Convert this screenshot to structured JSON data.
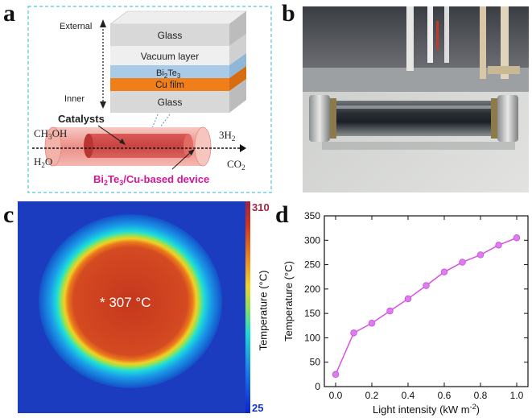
{
  "panels": {
    "a": {
      "letter": "a",
      "axis_top": "External",
      "axis_bottom": "Inner",
      "layers": {
        "glass_top": "Glass",
        "vacuum": "Vacuum layer",
        "bi2te3_base": "Bi",
        "bi2te3_sub1": "2",
        "bi2te3_mid": "Te",
        "bi2te3_sub2": "3",
        "cu": "Cu film",
        "glass_bottom": "Glass"
      },
      "catalysts": "Catalysts",
      "reactant_1": "CH",
      "reactant_1_sub": "3",
      "reactant_1_end": "OH",
      "reactant_2": "H",
      "reactant_2_sub": "2",
      "reactant_2_end": "O",
      "product_1": "3H",
      "product_1_sub": "2",
      "product_2": "CO",
      "product_2_sub": "2",
      "device_label_1": "Bi",
      "device_label_sub1": "2",
      "device_label_2": "Te",
      "device_label_sub2": "3",
      "device_label_3": "/Cu-based device"
    },
    "b": {
      "letter": "b"
    },
    "c": {
      "letter": "c",
      "temperature_readout": "* 307 °C",
      "colorbar_max": "310",
      "colorbar_min": "25",
      "colorbar_label": "Temperature (°C)"
    },
    "d": {
      "letter": "d"
    }
  },
  "colors": {
    "box_border": "#4fc3d9",
    "orange": "#f07f1a",
    "blue_layer": "#a9cbe8",
    "device_text": "#d4169b",
    "curve": "#d94fe8",
    "marker": "#e07cf0",
    "colorbar_max": "#a0243e",
    "colorbar_min": "#1030d8"
  },
  "chart_data": {
    "type": "line",
    "x": [
      0.0,
      0.1,
      0.2,
      0.3,
      0.4,
      0.5,
      0.6,
      0.7,
      0.8,
      0.9,
      1.0
    ],
    "y": [
      25,
      110,
      130,
      155,
      180,
      207,
      235,
      255,
      270,
      290,
      305
    ],
    "xlabel": "Light intensity (kW m",
    "xlabel_sup": "-2",
    "xlabel_end": ")",
    "ylabel": "Temperature (°C)",
    "xlim": [
      0.0,
      1.0
    ],
    "ylim": [
      0,
      350
    ],
    "xticks": [
      "0.0",
      "0.2",
      "0.4",
      "0.6",
      "0.8",
      "1.0"
    ],
    "yticks": [
      "0",
      "50",
      "100",
      "150",
      "200",
      "250",
      "300",
      "350"
    ],
    "grid": false,
    "legend": "none"
  }
}
